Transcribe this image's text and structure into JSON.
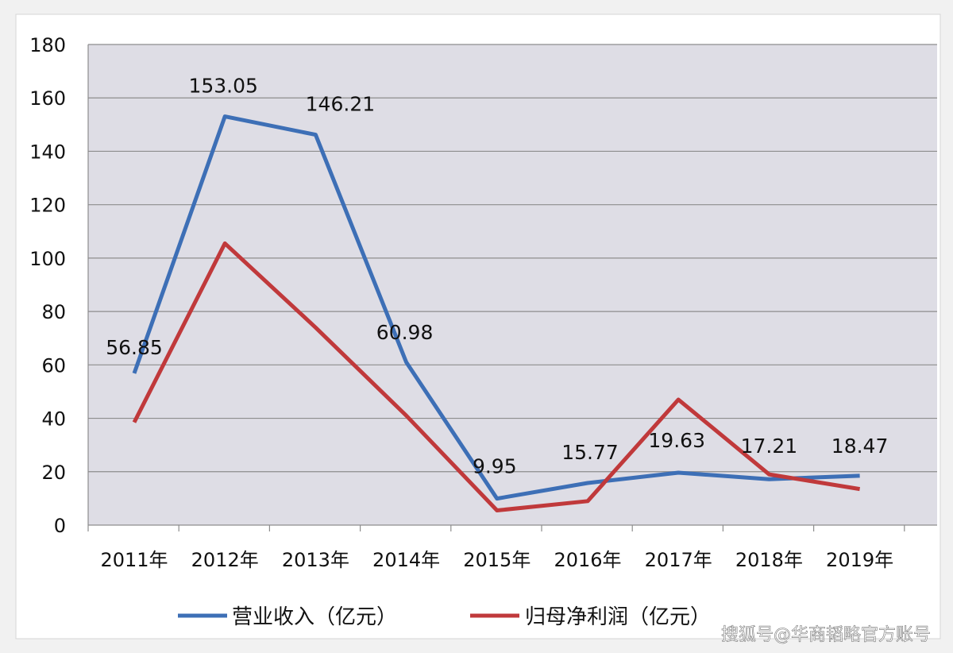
{
  "chart_data": {
    "type": "line",
    "categories": [
      "2011年",
      "2012年",
      "2013年",
      "2014年",
      "2015年",
      "2016年",
      "2017年",
      "2018年",
      "2019年"
    ],
    "series": [
      {
        "name": "营业收入（亿元）",
        "color": "#3d6fb6",
        "values": [
          56.85,
          153.05,
          146.21,
          60.98,
          9.95,
          15.77,
          19.63,
          17.21,
          18.47
        ],
        "labels": [
          "56.85",
          "153.05",
          "146.21",
          "60.98",
          "9.95",
          "15.77",
          "19.63",
          "17.21",
          "18.47"
        ]
      },
      {
        "name": "归母净利润（亿元）",
        "color": "#c0393b",
        "values": [
          38.5,
          105.5,
          74,
          41,
          5.5,
          9,
          47,
          19,
          13.5
        ]
      }
    ],
    "ylim": [
      0,
      180
    ],
    "yticks": [
      0,
      20,
      40,
      60,
      80,
      100,
      120,
      140,
      160,
      180
    ],
    "grid": true,
    "legend_position": "bottom"
  },
  "watermark": "搜狐号@华商韬略官方账号"
}
